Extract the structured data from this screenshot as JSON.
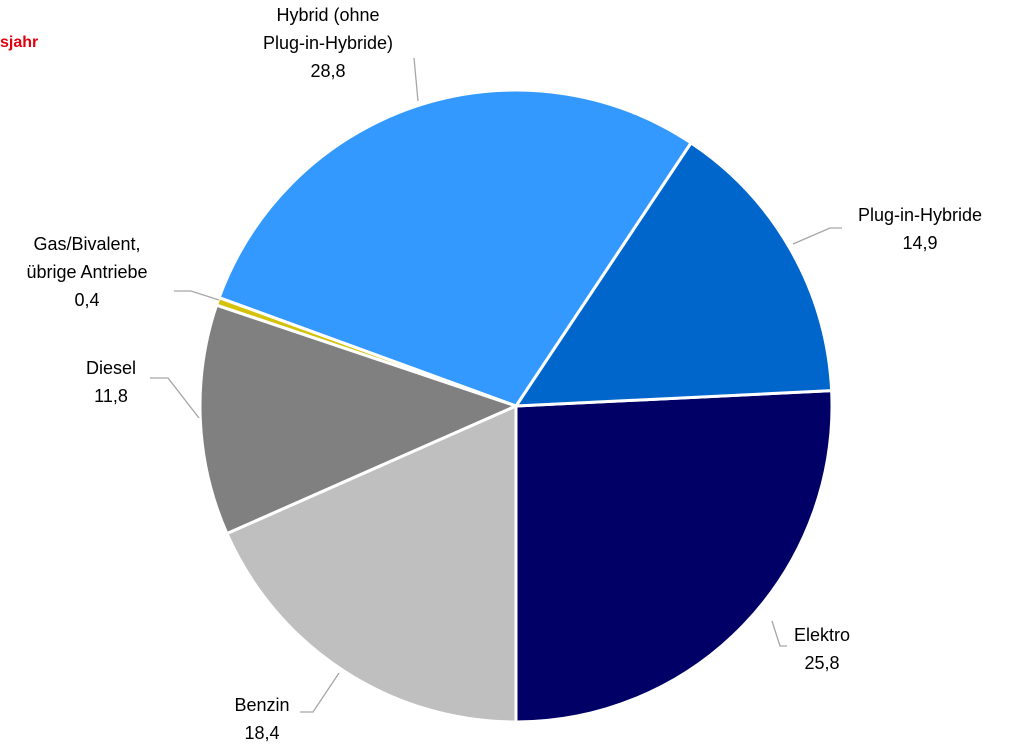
{
  "header": {
    "subtitle_fragment": "sjahr"
  },
  "colors": {
    "accent_red": "#e3000f",
    "leader_line": "#a6a6a6",
    "slice_border": "#ffffff"
  },
  "chart_data": {
    "type": "pie",
    "title": "",
    "value_format": "comma-decimal",
    "start_direction": "down",
    "order": "counterclockwise",
    "slices": [
      {
        "label_lines": [
          "Elektro"
        ],
        "value": 25.8,
        "value_text": "25,8",
        "color": "#000066"
      },
      {
        "label_lines": [
          "Plug-in-Hybride"
        ],
        "value": 14.9,
        "value_text": "14,9",
        "color": "#0066cc"
      },
      {
        "label_lines": [
          "Hybrid (ohne",
          "Plug-in-Hybride)"
        ],
        "value": 28.8,
        "value_text": "28,8",
        "color": "#3399ff"
      },
      {
        "label_lines": [
          "Gas/Bivalent,",
          "übrige Antriebe"
        ],
        "value": 0.4,
        "value_text": "0,4",
        "color": "#d4c10a"
      },
      {
        "label_lines": [
          "Diesel"
        ],
        "value": 11.8,
        "value_text": "11,8",
        "color": "#808080"
      },
      {
        "label_lines": [
          "Benzin"
        ],
        "value": 18.4,
        "value_text": "18,4",
        "color": "#bfbfbf"
      }
    ]
  }
}
